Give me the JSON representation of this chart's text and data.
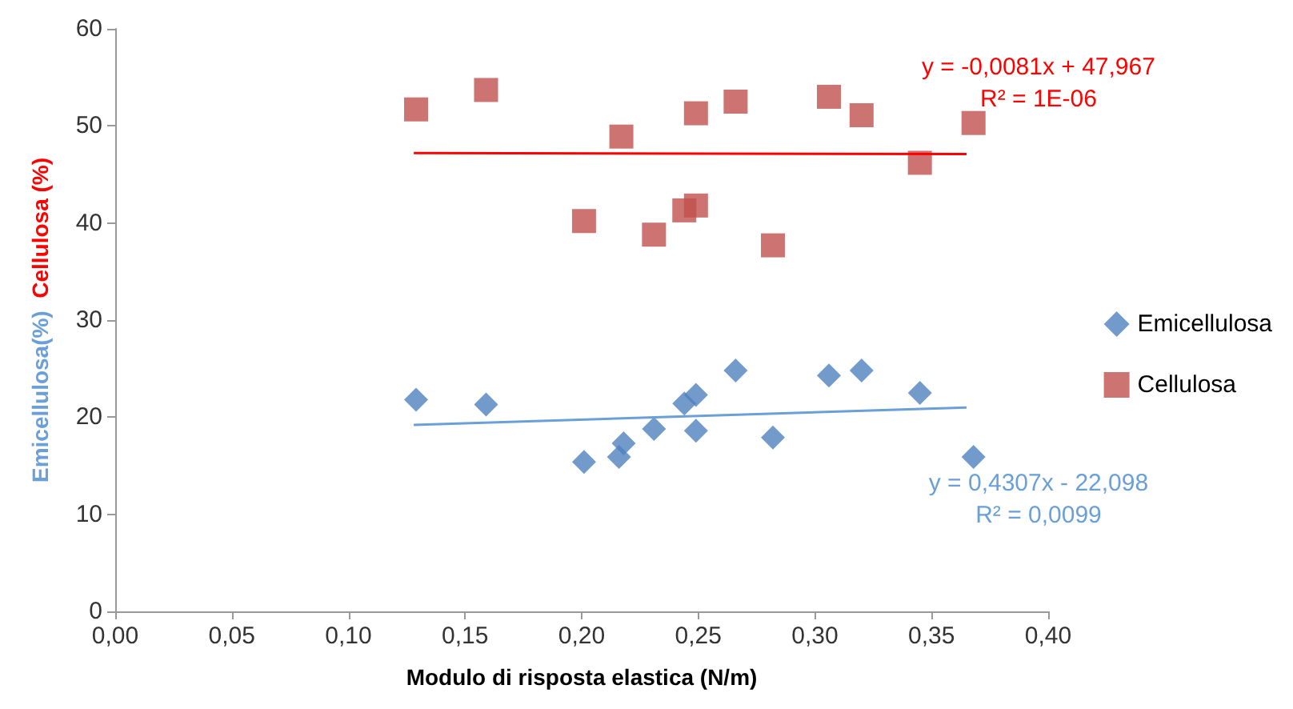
{
  "chart_data": {
    "type": "scatter",
    "xlabel": "Modulo di risposta elastica (N/m)",
    "ylabel": "Emicellulosa(%)  Cellulosa (%)",
    "xlim": [
      0,
      0.4
    ],
    "xticks": [
      {
        "value": 0,
        "label": "0,00"
      },
      {
        "value": 0.05,
        "label": "0,05"
      },
      {
        "value": 0.1,
        "label": "0,10"
      },
      {
        "value": 0.15,
        "label": "0,15"
      },
      {
        "value": 0.2,
        "label": "0,20"
      },
      {
        "value": 0.25,
        "label": "0,25"
      },
      {
        "value": 0.3,
        "label": "0,30"
      },
      {
        "value": 0.35,
        "label": "0,35"
      },
      {
        "value": 0.4,
        "label": "0,40"
      }
    ],
    "ylim": [
      0,
      60
    ],
    "yticks": [
      0,
      10,
      20,
      30,
      40,
      50,
      60
    ],
    "grid": false,
    "legend": "right",
    "series": [
      {
        "name": "Emicellulosa",
        "color": "#4f81bd",
        "marker": "diamond",
        "x": [
          0.129,
          0.159,
          0.201,
          0.218,
          0.216,
          0.231,
          0.244,
          0.249,
          0.249,
          0.266,
          0.282,
          0.306,
          0.32,
          0.345,
          0.368
        ],
        "values": [
          21.8,
          21.3,
          15.4,
          17.3,
          15.9,
          18.8,
          21.4,
          22.3,
          18.6,
          24.8,
          17.9,
          24.3,
          24.8,
          22.5,
          15.9
        ]
      },
      {
        "name": "Cellulosa",
        "color": "#c0504d",
        "marker": "square",
        "x": [
          0.129,
          0.159,
          0.217,
          0.201,
          0.249,
          0.266,
          0.306,
          0.32,
          0.368,
          0.345,
          0.249,
          0.244,
          0.231,
          0.282
        ],
        "values": [
          51.7,
          53.7,
          48.9,
          40.2,
          51.3,
          52.5,
          53.0,
          51.1,
          50.3,
          46.2,
          41.8,
          41.3,
          38.8,
          37.7
        ]
      },
      {
        "type": "line",
        "color": "#6a9fd8",
        "marker": "none",
        "x": [
          0.128,
          0.365
        ],
        "values": [
          19.2,
          21.0
        ]
      },
      {
        "type": "line",
        "color": "#ff0000",
        "marker": "none",
        "x": [
          0.128,
          0.365
        ],
        "values": [
          47.2,
          47.1
        ]
      }
    ],
    "annotations": [
      "y = 0,4307x - 22,098",
      "R² = 0,0099",
      "y = -0,0081x + 47,967",
      "R² = 1E-06"
    ]
  }
}
